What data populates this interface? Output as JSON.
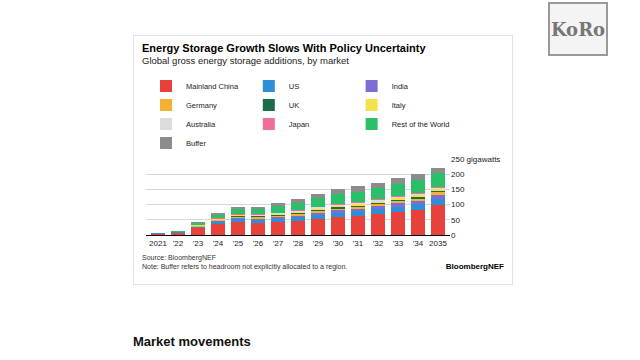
{
  "heading": "Market movements",
  "logo": "KoRo",
  "chart_data": {
    "type": "bar",
    "title": "Energy Storage Growth Slows With Policy Uncertainty",
    "subtitle": "Global gross energy storage additions, by market",
    "source": "Source: BloombergNEF",
    "note": "Note: Buffer refers to headroom not explicitly allocated to a region.",
    "brand": "BloombergNEF",
    "stacked": true,
    "grid": true,
    "legend": "top",
    "categories": [
      "2021",
      "'22",
      "'23",
      "'24",
      "'25",
      "'26",
      "'27",
      "'28",
      "'29",
      "'30",
      "'31",
      "'32",
      "'33",
      "'34",
      "2035"
    ],
    "ylim": [
      0,
      250
    ],
    "yticks": [
      0,
      50,
      100,
      150,
      200,
      {
        "value": 250,
        "label": "250 gigawatts"
      }
    ],
    "series": [
      {
        "name": "Mainland China",
        "color": "#e8413c",
        "values": [
          4,
          7,
          22,
          35,
          42,
          40,
          42,
          46,
          52,
          58,
          62,
          68,
          75,
          82,
          100
        ]
      },
      {
        "name": "US",
        "color": "#2e8fd8",
        "values": [
          1,
          2,
          5,
          9,
          10,
          10,
          11,
          12,
          14,
          15,
          16,
          17,
          18,
          19,
          20
        ]
      },
      {
        "name": "India",
        "color": "#7b6fd6",
        "values": [
          0,
          0,
          0.5,
          1,
          3,
          4,
          5,
          6,
          7,
          8,
          9,
          10,
          11,
          12,
          13
        ]
      },
      {
        "name": "Germany",
        "color": "#f2b134",
        "values": [
          0.5,
          1,
          2,
          3,
          4,
          4,
          4,
          5,
          5,
          6,
          6,
          6,
          7,
          7,
          8
        ]
      },
      {
        "name": "UK",
        "color": "#1c6b4a",
        "values": [
          0.3,
          0.5,
          1,
          2,
          3,
          3,
          3,
          3,
          4,
          4,
          4,
          4,
          5,
          5,
          5
        ]
      },
      {
        "name": "Italy",
        "color": "#f5e14a",
        "values": [
          0,
          0.2,
          1,
          2,
          3,
          3,
          4,
          4,
          5,
          5,
          5,
          5,
          5,
          5,
          5
        ]
      },
      {
        "name": "Australia",
        "color": "#dcdcdc",
        "values": [
          0.2,
          0.5,
          1,
          2,
          2,
          3,
          3,
          3,
          4,
          4,
          4,
          5,
          5,
          5,
          5
        ]
      },
      {
        "name": "Japan",
        "color": "#f06d9a",
        "values": [
          0,
          0.1,
          0.3,
          1,
          1,
          1,
          2,
          2,
          2,
          2,
          3,
          3,
          3,
          3,
          3
        ]
      },
      {
        "name": "Rest of the World",
        "color": "#2bbf6a",
        "values": [
          1,
          2,
          8,
          12,
          17,
          17,
          21,
          25,
          30,
          33,
          34,
          36,
          39,
          42,
          45
        ]
      },
      {
        "name": "Buffer",
        "color": "#8c8c8c",
        "values": [
          0,
          0,
          1,
          4,
          8,
          8,
          9,
          12,
          13,
          16,
          17,
          17,
          19,
          20,
          16
        ]
      }
    ]
  }
}
